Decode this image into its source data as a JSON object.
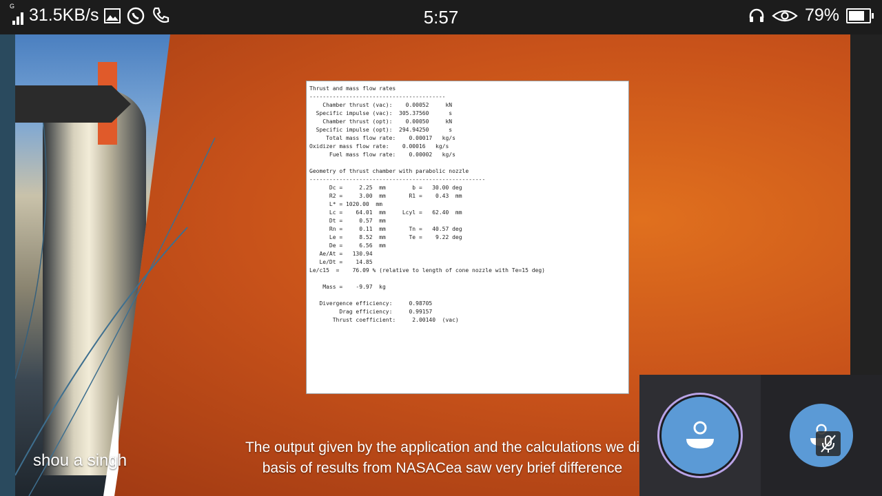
{
  "status_bar": {
    "network_type": "G",
    "speed": "31.5KB/s",
    "time": "5:57",
    "battery_percent": "79%",
    "battery_level": 0.79,
    "left_icons": [
      "signal-icon",
      "image-icon",
      "whatsapp-icon",
      "phone-icon"
    ],
    "right_icons": [
      "headset-icon",
      "eye-icon",
      "battery-icon"
    ]
  },
  "slide": {
    "output_text": "Thrust and mass flow rates\n-----------------------------------------\n    Chamber thrust (vac):    0.00052     kN\n  Specific impulse (vac):  305.37560      s\n    Chamber thrust (opt):    0.00050     kN\n  Specific impulse (opt):  294.94250      s\n     Total mass flow rate:    0.00017   kg/s\nOxidizer mass flow rate:    0.00016   kg/s\n      Fuel mass flow rate:    0.00002   kg/s\n\nGeometry of thrust chamber with parabolic nozzle\n-----------------------------------------------------\n      Dc =     2.25  mm        b =   30.00 deg\n      R2 =     3.00  mm       R1 =    0.43  mm\n      L* = 1020.00  mm\n      Lc =    64.01  mm     Lcyl =   62.40  mm\n      Dt =     0.57  mm\n      Rn =     0.11  mm       Tn =   40.57 deg\n      Le =     8.52  mm       Te =    9.22 deg\n      De =     6.56  mm\n   Ae/At =   130.94\n   Le/Dt =    14.85\nLe/c15  =    76.09 % (relative to length of cone nozzle with Te=15 deg)\n\n    Mass =    -9.97  kg\n\n   Divergence efficiency:     0.98705\n         Drag efficiency:     0.99157\n       Thrust coefficient:     2.00140  (vac)",
    "caption_line1": "The output given by the application and the calculations we di",
    "caption_line2": "basis of results from NASACea saw very brief difference"
  },
  "participants": {
    "presenter_name": "shou  a singh",
    "tile1_icon": "user-avatar-icon",
    "tile2_icon": "user-avatar-icon",
    "mic_icon": "mic-muted-icon"
  }
}
